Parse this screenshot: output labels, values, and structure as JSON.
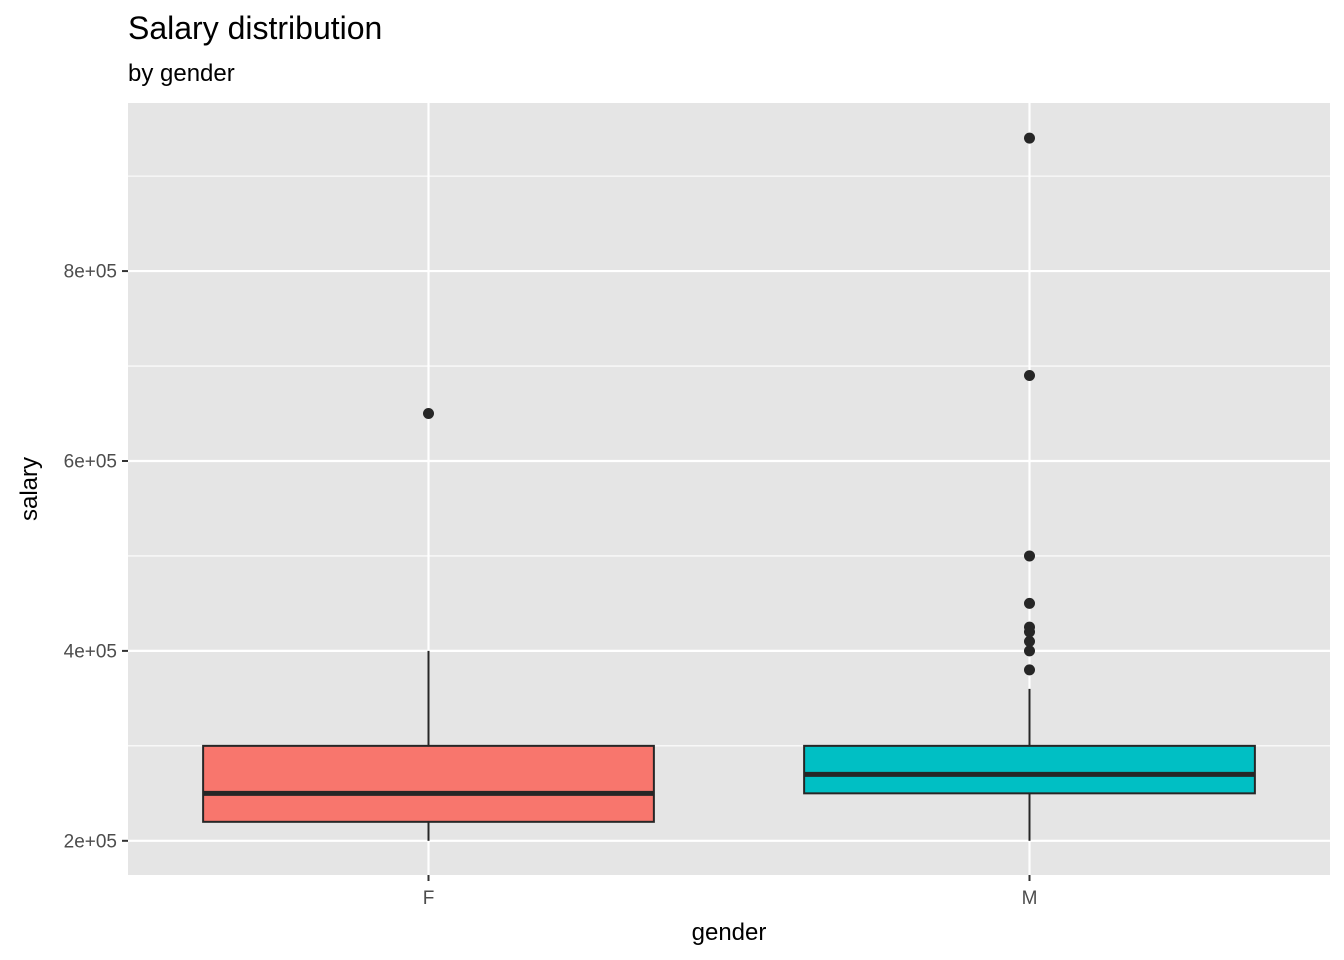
{
  "chart_data": {
    "type": "boxplot",
    "title": "Salary distribution",
    "subtitle": "by gender",
    "xlabel": "gender",
    "ylabel": "salary",
    "categories": [
      "F",
      "M"
    ],
    "y_ticks": [
      {
        "value": 200000,
        "label": "2e+05"
      },
      {
        "value": 400000,
        "label": "4e+05"
      },
      {
        "value": 600000,
        "label": "6e+05"
      },
      {
        "value": 800000,
        "label": "8e+05"
      }
    ],
    "ylim": [
      164000,
      977000
    ],
    "grid": true,
    "boxes": [
      {
        "category": "F",
        "min": 200000,
        "q1": 220000,
        "median": 250000,
        "q3": 300000,
        "max": 400000,
        "outliers": [
          650000
        ],
        "fill": "#F8766D"
      },
      {
        "category": "M",
        "min": 200000,
        "q1": 250000,
        "median": 270000,
        "q3": 300000,
        "max": 360000,
        "outliers": [
          380000,
          400000,
          410000,
          420000,
          425000,
          450000,
          500000,
          690000,
          940000
        ],
        "fill": "#00BFC4"
      }
    ],
    "colors": {
      "panel": "#E5E5E5",
      "grid": "#FFFFFF",
      "box_line": "#262626",
      "outlier": "#262626"
    }
  }
}
